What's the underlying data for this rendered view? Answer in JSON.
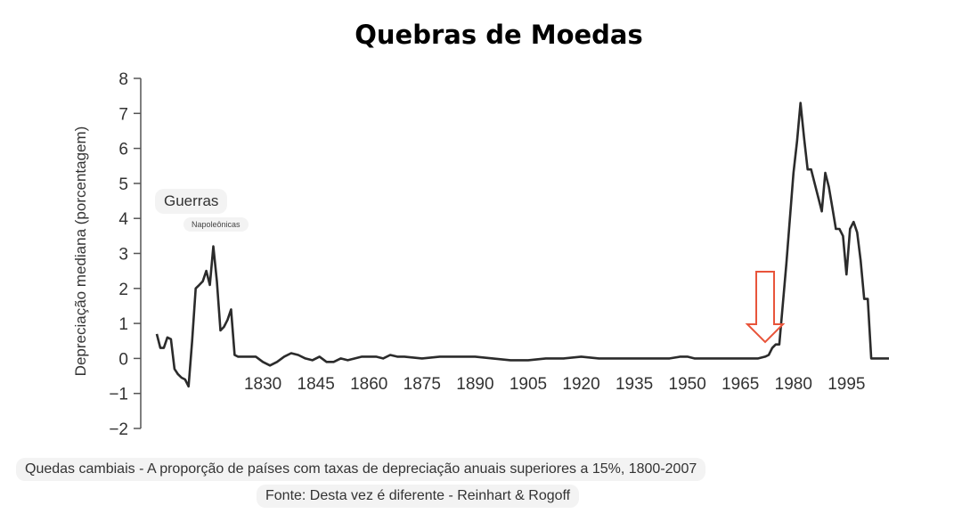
{
  "chart_data": {
    "type": "line",
    "title": "Quebras de Moedas",
    "ylabel": "Depreciação mediana (porcentagem)",
    "xlabel": "",
    "xlim": [
      1800,
      2007
    ],
    "ylim": [
      -2,
      8
    ],
    "y_ticks": [
      "8",
      "7",
      "6",
      "5",
      "4",
      "3",
      "2",
      "1",
      "0",
      "−1",
      "−2"
    ],
    "x_ticks": [
      "1830",
      "1845",
      "1860",
      "1875",
      "1890",
      "1905",
      "1920",
      "1935",
      "1950",
      "1965",
      "1980",
      "1995"
    ],
    "annotations": {
      "wars": "Guerras",
      "wars_sub": "Napoleônicas",
      "arrow_year": 1972,
      "arrow_color": "#e8543a"
    },
    "series": [
      {
        "line_color": "#2b2b2b",
        "x": [
          1800,
          1801,
          1802,
          1803,
          1804,
          1805,
          1806,
          1807,
          1808,
          1809,
          1810,
          1811,
          1812,
          1813,
          1814,
          1815,
          1816,
          1817,
          1818,
          1819,
          1820,
          1821,
          1822,
          1823,
          1825,
          1828,
          1830,
          1832,
          1834,
          1836,
          1838,
          1840,
          1842,
          1844,
          1846,
          1848,
          1850,
          1852,
          1854,
          1856,
          1858,
          1860,
          1862,
          1864,
          1866,
          1868,
          1870,
          1875,
          1880,
          1885,
          1890,
          1895,
          1900,
          1905,
          1910,
          1915,
          1920,
          1925,
          1930,
          1935,
          1940,
          1945,
          1948,
          1950,
          1952,
          1955,
          1960,
          1965,
          1968,
          1970,
          1972,
          1973,
          1974,
          1975,
          1976,
          1978,
          1980,
          1981,
          1982,
          1983,
          1984,
          1985,
          1986,
          1987,
          1988,
          1989,
          1990,
          1991,
          1992,
          1993,
          1994,
          1995,
          1996,
          1997,
          1998,
          1999,
          2000,
          2001,
          2002,
          2003,
          2004,
          2005,
          2006,
          2007
        ],
        "y": [
          0.7,
          0.3,
          0.3,
          0.6,
          0.55,
          -0.3,
          -0.45,
          -0.55,
          -0.6,
          -0.8,
          0.5,
          2.0,
          2.1,
          2.2,
          2.5,
          2.1,
          3.2,
          2.2,
          0.8,
          0.9,
          1.1,
          1.4,
          0.1,
          0.05,
          0.05,
          0.05,
          -0.1,
          -0.2,
          -0.1,
          0.05,
          0.15,
          0.1,
          0.0,
          -0.05,
          0.05,
          -0.1,
          -0.1,
          0.0,
          -0.05,
          0.0,
          0.05,
          0.05,
          0.05,
          0.0,
          0.1,
          0.05,
          0.05,
          0.0,
          0.05,
          0.05,
          0.05,
          0.0,
          -0.05,
          -0.05,
          0.0,
          0.0,
          0.05,
          0.0,
          0.0,
          0.0,
          0.0,
          0.0,
          0.05,
          0.05,
          0.0,
          0.0,
          0.0,
          0.0,
          0.0,
          0.0,
          0.05,
          0.1,
          0.3,
          0.4,
          0.4,
          2.7,
          5.3,
          6.2,
          7.3,
          6.3,
          5.4,
          5.4,
          5.0,
          4.6,
          4.2,
          5.3,
          4.9,
          4.3,
          3.7,
          3.7,
          3.5,
          2.4,
          3.7,
          3.9,
          3.6,
          2.8,
          1.7,
          1.7,
          0.0,
          0.0,
          0.0,
          0.0,
          0.0,
          0.0
        ]
      }
    ]
  },
  "captions": {
    "line1": "Quedas cambiais - A proporção de países com taxas de depreciação anuais superiores a 15%, 1800-2007",
    "line2": "Fonte: Desta vez é diferente - Reinhart & Rogoff"
  }
}
